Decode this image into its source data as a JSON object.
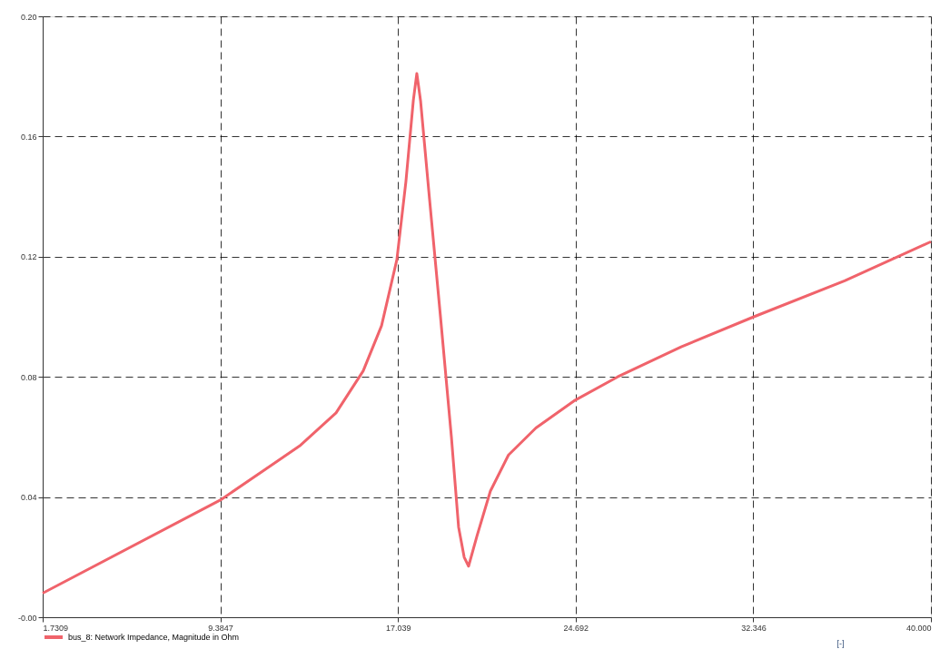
{
  "chart_data": {
    "type": "line",
    "xlabel": "[-]",
    "x": [
      1.731,
      9.385,
      12.8,
      14.37,
      15.54,
      16.33,
      16.99,
      17.38,
      17.7,
      17.85,
      18.01,
      18.4,
      18.87,
      19.34,
      19.65,
      19.89,
      20.08,
      20.44,
      21.02,
      21.8,
      22.98,
      24.62,
      26.5,
      29.24,
      32.37,
      36.28,
      40.0
    ],
    "series": [
      {
        "name": "bus_8: Network Impedance, Magnitude in Ohm",
        "color": "#f0636b",
        "values": [
          0.008,
          0.039,
          0.057,
          0.068,
          0.082,
          0.097,
          0.119,
          0.145,
          0.172,
          0.181,
          0.172,
          0.139,
          0.1,
          0.06,
          0.03,
          0.02,
          0.017,
          0.027,
          0.042,
          0.054,
          0.063,
          0.072,
          0.08,
          0.09,
          0.1,
          0.112,
          0.125
        ]
      }
    ],
    "xlim": [
      1.7309,
      40.0
    ],
    "xticks": [
      1.7309,
      9.3847,
      17.039,
      24.692,
      32.346,
      {
        "value": 40.0,
        "label": "40.000"
      }
    ],
    "ylim": [
      0,
      0.2
    ],
    "yticks": [
      {
        "value": 0,
        "label": "-0.00"
      },
      0.04,
      0.08,
      0.12,
      0.16,
      {
        "value": 0.2,
        "label": "0.20"
      }
    ],
    "grid": true,
    "legend": "bottom left",
    "marker": "none",
    "line_style": "solid"
  }
}
